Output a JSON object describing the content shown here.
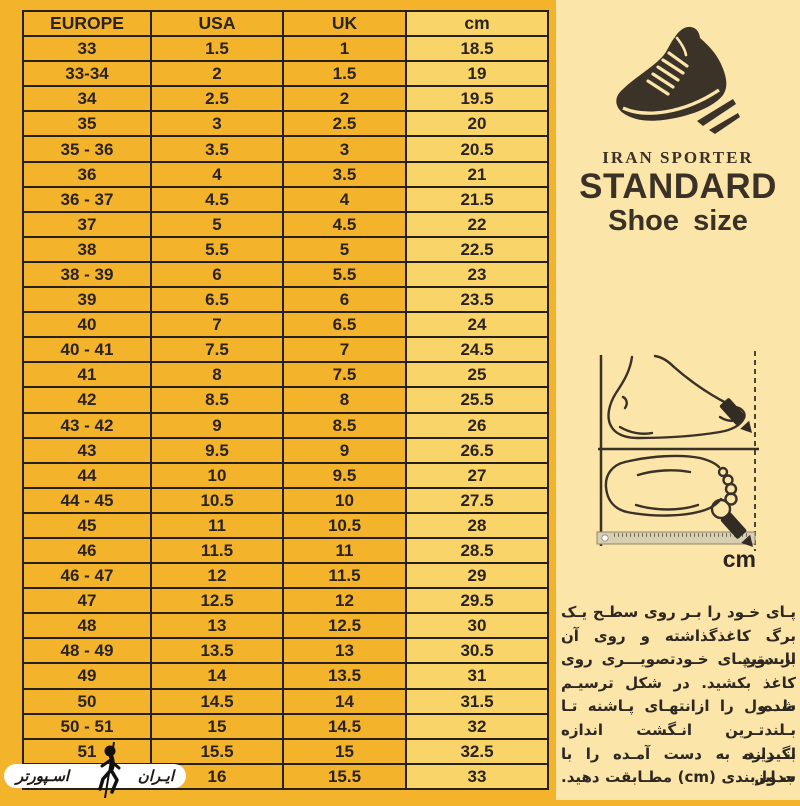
{
  "table": {
    "headers": [
      "EUROPE",
      "USA",
      "UK",
      "cm"
    ],
    "rows": [
      [
        "33",
        "1.5",
        "1",
        "18.5"
      ],
      [
        "33-34",
        "2",
        "1.5",
        "19"
      ],
      [
        "34",
        "2.5",
        "2",
        "19.5"
      ],
      [
        "35",
        "3",
        "2.5",
        "20"
      ],
      [
        "35 - 36",
        "3.5",
        "3",
        "20.5"
      ],
      [
        "36",
        "4",
        "3.5",
        "21"
      ],
      [
        "36 - 37",
        "4.5",
        "4",
        "21.5"
      ],
      [
        "37",
        "5",
        "4.5",
        "22"
      ],
      [
        "38",
        "5.5",
        "5",
        "22.5"
      ],
      [
        "38 - 39",
        "6",
        "5.5",
        "23"
      ],
      [
        "39",
        "6.5",
        "6",
        "23.5"
      ],
      [
        "40",
        "7",
        "6.5",
        "24"
      ],
      [
        "40 - 41",
        "7.5",
        "7",
        "24.5"
      ],
      [
        "41",
        "8",
        "7.5",
        "25"
      ],
      [
        "42",
        "8.5",
        "8",
        "25.5"
      ],
      [
        "43 - 42",
        "9",
        "8.5",
        "26"
      ],
      [
        "43",
        "9.5",
        "9",
        "26.5"
      ],
      [
        "44",
        "10",
        "9.5",
        "27"
      ],
      [
        "44 - 45",
        "10.5",
        "10",
        "27.5"
      ],
      [
        "45",
        "11",
        "10.5",
        "28"
      ],
      [
        "46",
        "11.5",
        "11",
        "28.5"
      ],
      [
        "46 - 47",
        "12",
        "11.5",
        "29"
      ],
      [
        "47",
        "12.5",
        "12",
        "29.5"
      ],
      [
        "48",
        "13",
        "12.5",
        "30"
      ],
      [
        "48 - 49",
        "13.5",
        "13",
        "30.5"
      ],
      [
        "49",
        "14",
        "13.5",
        "31"
      ],
      [
        "50",
        "14.5",
        "14",
        "31.5"
      ],
      [
        "50 - 51",
        "15",
        "14.5",
        "32"
      ],
      [
        "51",
        "15.5",
        "15",
        "32.5"
      ],
      [
        "",
        "16",
        "15.5",
        "33"
      ]
    ]
  },
  "brand": {
    "name": "IRAN SPORTER",
    "headline": "STANDARD",
    "subheadline": "Shoe size",
    "logo_right": "ایـران",
    "logo_left": "اسـپورتر"
  },
  "measure": {
    "unit": "cm"
  },
  "instructions": {
    "lines": [
      "پـای خـود را بـر روی سطـح یـک",
      "برگ کاغذگذاشته و روی آن بایستید.",
      "از دورپـای خـودتصویـــری روی",
      "کاغذ بکشید. در شکل ترسیـم شده،",
      "طـــول را ازانتهـای پـاشنه تـا",
      "بـلندتـرین انـگشت اندازه بگیریـد.",
      "انــدازه به دست آمـده را با جدول",
      "سـایزبندی (cm) مطـابقت دهید."
    ]
  },
  "colors": {
    "background": "#F3B42B",
    "cm_column": "#F9D469",
    "panel_background": "#FBE5A9",
    "table_border": "#262019",
    "text_dark": "#2B2320",
    "brand_dark": "#3A3127",
    "logo_background": "#FFFFFF"
  }
}
